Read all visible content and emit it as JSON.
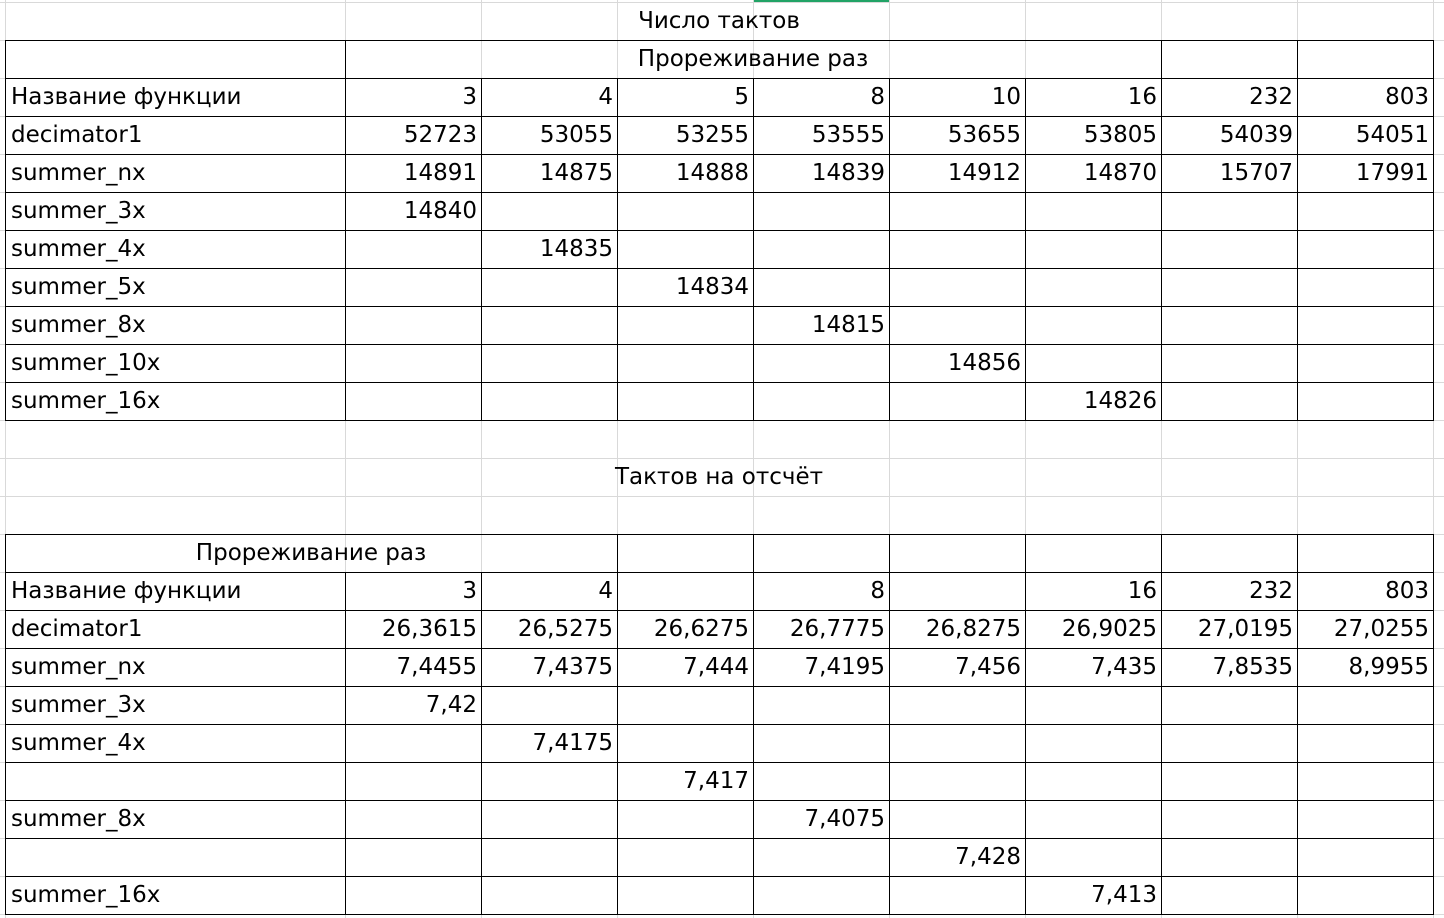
{
  "sheet": {
    "table1": {
      "title": "Число тактов",
      "group_header": "Прореживание раз",
      "header_row": [
        "Название функции",
        "3",
        "4",
        "5",
        "8",
        "10",
        "16",
        "232",
        "803"
      ],
      "rows": [
        [
          "decimator1",
          "52723",
          "53055",
          "53255",
          "53555",
          "53655",
          "53805",
          "54039",
          "54051"
        ],
        [
          "summer_nx",
          "14891",
          "14875",
          "14888",
          "14839",
          "14912",
          "14870",
          "15707",
          "17991"
        ],
        [
          "summer_3x",
          "14840",
          "",
          "",
          "",
          "",
          "",
          "",
          ""
        ],
        [
          "summer_4x",
          "",
          "14835",
          "",
          "",
          "",
          "",
          "",
          ""
        ],
        [
          "summer_5x",
          "",
          "",
          "14834",
          "",
          "",
          "",
          "",
          ""
        ],
        [
          "summer_8x",
          "",
          "",
          "",
          "14815",
          "",
          "",
          "",
          ""
        ],
        [
          "summer_10x",
          "",
          "",
          "",
          "",
          "14856",
          "",
          "",
          ""
        ],
        [
          "summer_16x",
          "",
          "",
          "",
          "",
          "",
          "14826",
          "",
          ""
        ]
      ]
    },
    "table2": {
      "title": "Тактов на отсчёт",
      "group_header": "Прореживание раз",
      "header_row": [
        "Название функции",
        "3",
        "4",
        "",
        "8",
        "",
        "16",
        "232",
        "803"
      ],
      "rows": [
        [
          "decimator1",
          "26,3615",
          "26,5275",
          "26,6275",
          "26,7775",
          "26,8275",
          "26,9025",
          "27,0195",
          "27,0255"
        ],
        [
          "summer_nx",
          "7,4455",
          "7,4375",
          "7,444",
          "7,4195",
          "7,456",
          "7,435",
          "7,8535",
          "8,9955"
        ],
        [
          "summer_3x",
          "7,42",
          "",
          "",
          "",
          "",
          "",
          "",
          ""
        ],
        [
          "summer_4x",
          "",
          "7,4175",
          "",
          "",
          "",
          "",
          "",
          ""
        ],
        [
          "",
          "",
          "",
          "7,417",
          "",
          "",
          "",
          "",
          ""
        ],
        [
          "summer_8x",
          "",
          "",
          "",
          "7,4075",
          "",
          "",
          "",
          ""
        ],
        [
          "",
          "",
          "",
          "",
          "",
          "7,428",
          "",
          "",
          ""
        ],
        [
          "summer_16x",
          "",
          "",
          "",
          "",
          "",
          "7,413",
          "",
          ""
        ]
      ]
    },
    "colors": {
      "gridline": "#d9d9d9",
      "border": "#000000",
      "selection_accent": "#21a366"
    }
  }
}
